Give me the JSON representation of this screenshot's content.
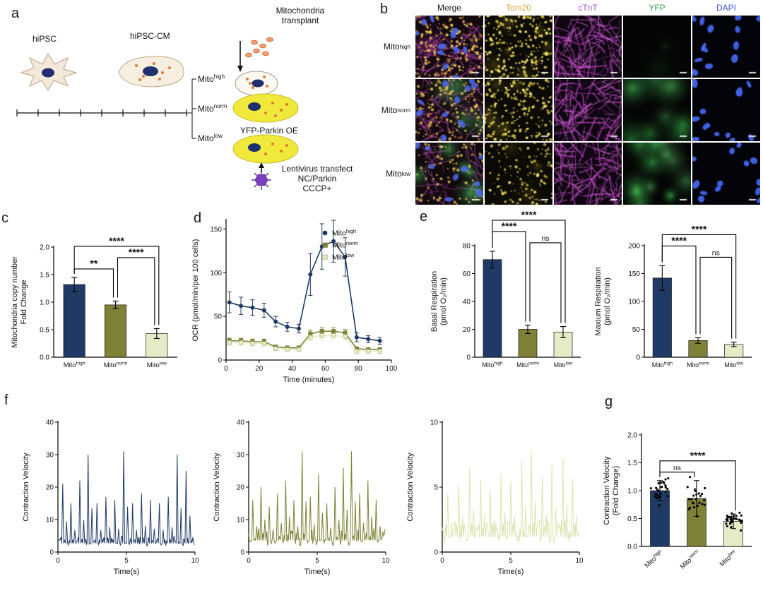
{
  "figure": {
    "panel_letters": [
      "a",
      "b",
      "c",
      "d",
      "e",
      "f",
      "g"
    ]
  },
  "panel_a": {
    "hipsc": "hiPSC",
    "hipsc_cm": "hiPSC-CM",
    "transplant": "Mitochondria\ntransplant",
    "mito_high": "Mito^{high}",
    "mito_norm": "Mito^{norm}",
    "mito_low": "Mito^{low}",
    "yfp_parkin": "YFP-Parkin OE",
    "lentivirus": "Lentivirus transfect\nNC/Parkin\nCCCP+"
  },
  "panel_b": {
    "col_headers": [
      {
        "text": "Merge",
        "color": "#1a1a1a"
      },
      {
        "text": "Tom20",
        "color": "#e6a23c"
      },
      {
        "text": "cTnT",
        "color": "#a94fd1"
      },
      {
        "text": "YFP",
        "color": "#2f9e41"
      },
      {
        "text": "DAPI",
        "color": "#3c55d4"
      }
    ],
    "row_labels": [
      "Mito^{high}",
      "Mito^{norm}",
      "Mito^{low}"
    ],
    "tiles": [
      [
        "merge_high",
        "tom20_high",
        "ctnt",
        "yfp_high",
        "dapi"
      ],
      [
        "merge_norm",
        "tom20_high",
        "ctnt",
        "yfp_norm",
        "dapi"
      ],
      [
        "merge_low",
        "tom20_low",
        "ctnt",
        "yfp_low",
        "dapi"
      ]
    ],
    "tile_types": {
      "merge_high": {
        "bg": "#140910",
        "layers": [
          {
            "kind": "fibers",
            "color": "rgba(210,80,205,0.5)",
            "n": 55
          },
          {
            "kind": "blobs",
            "color": "rgba(190,60,180,0.22)",
            "n": 5
          },
          {
            "kind": "dots",
            "color": "rgba(235,205,80,0.85)",
            "n": 140
          },
          {
            "kind": "dots",
            "color": "rgba(240,160,70,0.5)",
            "n": 70
          },
          {
            "kind": "nuclei",
            "color": "rgba(75,105,235,0.9)",
            "n": 11
          }
        ]
      },
      "merge_norm": {
        "bg": "#140910",
        "layers": [
          {
            "kind": "fibers",
            "color": "rgba(210,80,205,0.45)",
            "n": 50
          },
          {
            "kind": "blobs",
            "color": "rgba(190,60,180,0.2)",
            "n": 4
          },
          {
            "kind": "blobs",
            "color": "rgba(70,200,90,0.35)",
            "n": 4,
            "big": true
          },
          {
            "kind": "dots",
            "color": "rgba(235,205,80,0.8)",
            "n": 120
          },
          {
            "kind": "dots",
            "color": "rgba(240,160,70,0.45)",
            "n": 60
          },
          {
            "kind": "nuclei",
            "color": "rgba(75,105,235,0.85)",
            "n": 10
          }
        ]
      },
      "merge_low": {
        "bg": "#120a0e",
        "layers": [
          {
            "kind": "fibers",
            "color": "rgba(210,80,205,0.4)",
            "n": 45
          },
          {
            "kind": "blobs",
            "color": "rgba(75,210,95,0.5)",
            "n": 6,
            "big": true
          },
          {
            "kind": "dots",
            "color": "rgba(235,205,80,0.75)",
            "n": 90
          },
          {
            "kind": "nuclei",
            "color": "rgba(75,105,235,0.85)",
            "n": 9
          }
        ]
      },
      "tom20_high": {
        "bg": "#0b0a04",
        "layers": [
          {
            "kind": "blobs",
            "color": "rgba(190,170,50,0.22)",
            "n": 6
          },
          {
            "kind": "dots",
            "color": "rgba(225,205,70,0.8)",
            "n": 170
          },
          {
            "kind": "dots",
            "color": "rgba(255,235,110,0.9)",
            "n": 50
          }
        ]
      },
      "tom20_low": {
        "bg": "#0b0a04",
        "layers": [
          {
            "kind": "blobs",
            "color": "rgba(190,170,50,0.15)",
            "n": 4
          },
          {
            "kind": "dots",
            "color": "rgba(225,205,70,0.7)",
            "n": 100
          },
          {
            "kind": "dots",
            "color": "rgba(255,235,110,0.85)",
            "n": 30
          }
        ]
      },
      "ctnt": {
        "bg": "#100512",
        "layers": [
          {
            "kind": "fibers",
            "color": "rgba(205,75,210,0.65)",
            "n": 70
          },
          {
            "kind": "fibers",
            "color": "rgba(235,130,240,0.35)",
            "n": 45
          }
        ]
      },
      "yfp_high": {
        "bg": "#040504",
        "layers": [
          {
            "kind": "blobs",
            "color": "rgba(45,125,55,0.15)",
            "n": 2,
            "big": true
          }
        ]
      },
      "yfp_norm": {
        "bg": "#040504",
        "layers": [
          {
            "kind": "blobs",
            "color": "rgba(60,190,80,0.45)",
            "n": 6,
            "big": true
          },
          {
            "kind": "blobs",
            "color": "rgba(90,220,110,0.3)",
            "n": 4,
            "big": true
          }
        ]
      },
      "yfp_low": {
        "bg": "#040504",
        "layers": [
          {
            "kind": "blobs",
            "color": "rgba(70,210,90,0.55)",
            "n": 7,
            "big": true
          },
          {
            "kind": "blobs",
            "color": "rgba(110,235,130,0.35)",
            "n": 5,
            "big": true
          }
        ]
      },
      "dapi": {
        "bg": "#030409",
        "layers": [
          {
            "kind": "nuclei",
            "color": "rgba(65,100,235,0.95)",
            "n": 13
          }
        ]
      }
    }
  },
  "colors": {
    "high": "#1f3a64",
    "norm": "#7e8136",
    "low": "#e7ebc5"
  },
  "chart_data": [
    {
      "id": "c",
      "type": "bar",
      "ylabel_lines": [
        "Mitochondria copy number",
        "Fold Change"
      ],
      "categories": [
        "Mito^{high}",
        "Mito^{norm}",
        "Mito^{low}"
      ],
      "values": [
        1.32,
        0.95,
        0.43
      ],
      "errors": [
        0.13,
        0.07,
        0.09
      ],
      "colors": [
        "#1f3a64",
        "#7e8136",
        "#e7ebc5"
      ],
      "ylim": [
        0,
        2
      ],
      "yticks": [
        0,
        0.5,
        1,
        1.5,
        2
      ],
      "ydec": 1,
      "annotations": [
        {
          "i": 0,
          "j": 1,
          "label": "**",
          "level": 0,
          "o2": -3
        },
        {
          "i": 1,
          "j": 2,
          "label": "****",
          "level": 1,
          "o1": 3,
          "o2": -3
        },
        {
          "i": 0,
          "j": 2,
          "label": "****",
          "level": 2,
          "o2": 3
        }
      ]
    },
    {
      "id": "d",
      "type": "line",
      "ylabel_lines": [
        "OCR (pmol/min/per 100 cells)"
      ],
      "xlabel": "Time (minutes)",
      "x": [
        2,
        9,
        16,
        23,
        30,
        37,
        44,
        51,
        58,
        65,
        72,
        79,
        86,
        93
      ],
      "xlim": [
        0,
        100
      ],
      "xticks": [
        0,
        20,
        40,
        60,
        80,
        100
      ],
      "ylim": [
        0,
        160
      ],
      "yticks": [
        0,
        50,
        100,
        150
      ],
      "ydec": 0,
      "series": [
        {
          "name": "Mito^{high}",
          "color": "#1f3a64",
          "marker": "circle",
          "values": [
            66,
            62,
            60,
            57,
            44,
            38,
            36,
            98,
            130,
            136,
            118,
            26,
            24,
            22
          ],
          "errors": [
            12,
            10,
            9,
            8,
            6,
            5,
            5,
            24,
            26,
            24,
            22,
            5,
            4,
            4
          ]
        },
        {
          "name": "Mito^{norm}",
          "color": "#7e8136",
          "marker": "square",
          "values": [
            22,
            22,
            21,
            21,
            15,
            14,
            14,
            30,
            33,
            33,
            31,
            13,
            12,
            12
          ],
          "errors": [
            3,
            3,
            3,
            3,
            2,
            2,
            2,
            4,
            4,
            4,
            4,
            2,
            2,
            2
          ]
        },
        {
          "name": "Mito^{low}",
          "color": "#e7ebc5",
          "marker": "square",
          "mstroke": "#a7ac72",
          "values": [
            20,
            20,
            19,
            19,
            13,
            12,
            12,
            26,
            28,
            28,
            27,
            10,
            10,
            10
          ],
          "errors": [
            3,
            3,
            3,
            3,
            2,
            2,
            2,
            4,
            4,
            4,
            4,
            2,
            2,
            2
          ]
        }
      ]
    },
    {
      "id": "e1",
      "type": "bar",
      "ylabel_lines": [
        "Basal Respiration",
        "(pmol O₂/min)"
      ],
      "categories": [
        "Mito^{high}",
        "Mito^{norm}",
        "Mito^{low}"
      ],
      "values": [
        70,
        20,
        18
      ],
      "errors": [
        6,
        3,
        4
      ],
      "colors": [
        "#1f3a64",
        "#7e8136",
        "#e7ebc5"
      ],
      "ylim": [
        0,
        80
      ],
      "yticks": [
        0,
        20,
        40,
        60,
        80
      ],
      "ydec": 0,
      "annotations": [
        {
          "i": 1,
          "j": 2,
          "label": "ns",
          "level": 0,
          "o1": 3,
          "o2": -3
        },
        {
          "i": 0,
          "j": 1,
          "label": "****",
          "level": 1,
          "o2": -3
        },
        {
          "i": 0,
          "j": 2,
          "label": "****",
          "level": 2,
          "o2": 3
        }
      ]
    },
    {
      "id": "e2",
      "type": "bar",
      "ylabel_lines": [
        "Maxium Respiration",
        "(pmol O₂/min)"
      ],
      "categories": [
        "Mito^{high}",
        "Mito^{norm}",
        "Mito^{low}"
      ],
      "values": [
        142,
        30,
        23
      ],
      "errors": [
        22,
        5,
        4
      ],
      "colors": [
        "#1f3a64",
        "#7e8136",
        "#e7ebc5"
      ],
      "ylim": [
        0,
        200
      ],
      "yticks": [
        0,
        50,
        100,
        150,
        200
      ],
      "ydec": 0,
      "annotations": [
        {
          "i": 1,
          "j": 2,
          "label": "ns",
          "level": 0,
          "o1": 3,
          "o2": -3
        },
        {
          "i": 0,
          "j": 1,
          "label": "****",
          "level": 1,
          "o2": -3
        },
        {
          "i": 0,
          "j": 2,
          "label": "****",
          "level": 2,
          "o2": 3
        }
      ]
    },
    {
      "id": "f1",
      "type": "trace",
      "ylabel_lines": [
        "Contraction Velocity"
      ],
      "xlabel": "Time(s)",
      "color": "#1f3a64",
      "xlim": [
        0,
        10
      ],
      "xticks": [
        0,
        5,
        10
      ],
      "ylim": [
        0,
        40
      ],
      "yticks": [
        0,
        10,
        20,
        30,
        40
      ],
      "ydec": 0,
      "baseline": 3,
      "noise": 1.6,
      "seed": 11,
      "after_ratio": 0.45,
      "beats": [
        {
          "t": 0.35,
          "a": 21
        },
        {
          "t": 0.95,
          "a": 15
        },
        {
          "t": 1.6,
          "a": 22
        },
        {
          "t": 2.2,
          "a": 30
        },
        {
          "t": 2.85,
          "a": 15
        },
        {
          "t": 3.5,
          "a": 17
        },
        {
          "t": 4.15,
          "a": 16
        },
        {
          "t": 4.8,
          "a": 31
        },
        {
          "t": 5.45,
          "a": 15
        },
        {
          "t": 6.1,
          "a": 18
        },
        {
          "t": 6.75,
          "a": 16
        },
        {
          "t": 7.4,
          "a": 15
        },
        {
          "t": 8.05,
          "a": 17
        },
        {
          "t": 8.7,
          "a": 30
        },
        {
          "t": 9.35,
          "a": 25
        }
      ]
    },
    {
      "id": "f2",
      "type": "trace",
      "ylabel_lines": [
        "Contraction Velocity"
      ],
      "xlabel": "Time(s)",
      "color": "#7e8136",
      "xlim": [
        0,
        10
      ],
      "xticks": [
        0,
        5,
        10
      ],
      "ylim": [
        0,
        40
      ],
      "yticks": [
        0,
        10,
        20,
        30,
        40
      ],
      "ydec": 0,
      "baseline": 4,
      "noise": 3,
      "seed": 22,
      "after_ratio": 0.5,
      "beats": [
        {
          "t": 0.3,
          "a": 16
        },
        {
          "t": 0.9,
          "a": 20
        },
        {
          "t": 1.5,
          "a": 14
        },
        {
          "t": 2.1,
          "a": 18
        },
        {
          "t": 2.7,
          "a": 22
        },
        {
          "t": 3.3,
          "a": 16
        },
        {
          "t": 3.9,
          "a": 31
        },
        {
          "t": 4.5,
          "a": 17
        },
        {
          "t": 5.1,
          "a": 24
        },
        {
          "t": 5.7,
          "a": 15
        },
        {
          "t": 6.3,
          "a": 20
        },
        {
          "t": 6.9,
          "a": 26
        },
        {
          "t": 7.5,
          "a": 31
        },
        {
          "t": 8.1,
          "a": 18
        },
        {
          "t": 8.7,
          "a": 22
        },
        {
          "t": 9.3,
          "a": 16
        }
      ]
    },
    {
      "id": "f3",
      "type": "trace",
      "ylabel_lines": [
        "Contraction Velocity"
      ],
      "xlabel": "Time(s)",
      "color": "#dde3b0",
      "xlim": [
        0,
        10
      ],
      "xticks": [
        0,
        5,
        10
      ],
      "ylim": [
        0,
        10
      ],
      "yticks": [
        0,
        5,
        10
      ],
      "ydec": 0,
      "baseline": 1.3,
      "noise": 0.9,
      "seed": 33,
      "after_ratio": 0.5,
      "beats": [
        {
          "t": 0.4,
          "a": 4.5
        },
        {
          "t": 1.2,
          "a": 5.2
        },
        {
          "t": 2.0,
          "a": 6.5
        },
        {
          "t": 2.8,
          "a": 5.5
        },
        {
          "t": 3.5,
          "a": 4.8
        },
        {
          "t": 4.3,
          "a": 6.0
        },
        {
          "t": 5.0,
          "a": 5.5
        },
        {
          "t": 5.8,
          "a": 7.0
        },
        {
          "t": 6.5,
          "a": 7.8
        },
        {
          "t": 7.3,
          "a": 5.8
        },
        {
          "t": 8.0,
          "a": 6.8
        },
        {
          "t": 8.8,
          "a": 7.2
        },
        {
          "t": 9.5,
          "a": 5.6
        }
      ]
    },
    {
      "id": "g",
      "type": "bar",
      "ylabel_lines": [
        "Contraction Velocity",
        "(Fold Change)"
      ],
      "categories": [
        "Mito^{high}",
        "Mito^{norm}",
        "Mito^{low}"
      ],
      "values": [
        1.0,
        0.86,
        0.45
      ],
      "errors": [
        0.18,
        0.32,
        0.13
      ],
      "colors": [
        "#1f3a64",
        "#7e8136",
        "#e7ebc5"
      ],
      "scatter": {
        "n": [
          28,
          24,
          30
        ],
        "seed": 7
      },
      "ylim": [
        0,
        2
      ],
      "yticks": [
        0,
        0.5,
        1,
        1.5,
        2
      ],
      "ydec": 1,
      "annotations": [
        {
          "i": 0,
          "j": 1,
          "label": "ns",
          "level": 0,
          "o2": -3
        },
        {
          "i": 0,
          "j": 2,
          "label": "****",
          "level": 1,
          "o2": 3
        }
      ]
    }
  ]
}
